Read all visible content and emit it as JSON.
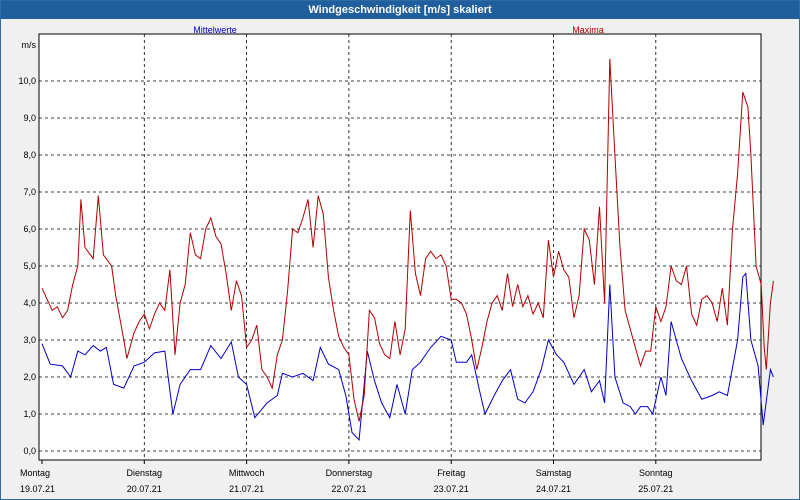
{
  "window": {
    "title": "Windgeschwindigkeit [m/s] skaliert"
  },
  "chart_data": {
    "type": "line",
    "ylabel": "m/s",
    "ylim": [
      0,
      11
    ],
    "yticks": [
      "0,0",
      "1,0",
      "2,0",
      "3,0",
      "4,0",
      "5,0",
      "6,0",
      "7,0",
      "8,0",
      "9,0",
      "10,0"
    ],
    "xlim": [
      0,
      7
    ],
    "xticks": [
      {
        "day": "Montag",
        "date": "19.07.21"
      },
      {
        "day": "Dienstag",
        "date": "20.07.21"
      },
      {
        "day": "Mittwoch",
        "date": "21.07.21"
      },
      {
        "day": "Donnerstag",
        "date": "22.07.21"
      },
      {
        "day": "Freitag",
        "date": "23.07.21"
      },
      {
        "day": "Samstag",
        "date": "24.07.21"
      },
      {
        "day": "Sonntag",
        "date": "25.07.21"
      }
    ],
    "grid": true,
    "series": [
      {
        "name": "Mittelwerte",
        "color": "#0000cc",
        "points": [
          [
            0.0,
            2.9
          ],
          [
            0.08,
            2.35
          ],
          [
            0.2,
            2.3
          ],
          [
            0.28,
            2.0
          ],
          [
            0.35,
            2.7
          ],
          [
            0.42,
            2.6
          ],
          [
            0.5,
            2.85
          ],
          [
            0.57,
            2.7
          ],
          [
            0.63,
            2.8
          ],
          [
            0.7,
            1.8
          ],
          [
            0.8,
            1.7
          ],
          [
            0.9,
            2.3
          ],
          [
            1.0,
            2.4
          ],
          [
            1.1,
            2.65
          ],
          [
            1.2,
            2.7
          ],
          [
            1.28,
            1.0
          ],
          [
            1.35,
            1.8
          ],
          [
            1.45,
            2.2
          ],
          [
            1.55,
            2.2
          ],
          [
            1.65,
            2.85
          ],
          [
            1.75,
            2.5
          ],
          [
            1.85,
            2.95
          ],
          [
            1.92,
            2.0
          ],
          [
            2.0,
            1.8
          ],
          [
            2.08,
            0.9
          ],
          [
            2.2,
            1.3
          ],
          [
            2.3,
            1.5
          ],
          [
            2.35,
            2.1
          ],
          [
            2.45,
            2.0
          ],
          [
            2.55,
            2.1
          ],
          [
            2.65,
            1.9
          ],
          [
            2.72,
            2.8
          ],
          [
            2.8,
            2.35
          ],
          [
            2.9,
            2.2
          ],
          [
            2.97,
            1.5
          ],
          [
            3.03,
            0.5
          ],
          [
            3.1,
            0.3
          ],
          [
            3.18,
            2.7
          ],
          [
            3.25,
            1.9
          ],
          [
            3.32,
            1.3
          ],
          [
            3.4,
            0.9
          ],
          [
            3.47,
            1.8
          ],
          [
            3.55,
            1.0
          ],
          [
            3.62,
            2.2
          ],
          [
            3.7,
            2.4
          ],
          [
            3.8,
            2.8
          ],
          [
            3.9,
            3.1
          ],
          [
            4.0,
            3.0
          ],
          [
            4.05,
            2.4
          ],
          [
            4.15,
            2.4
          ],
          [
            4.2,
            2.6
          ],
          [
            4.28,
            1.6
          ],
          [
            4.33,
            1.0
          ],
          [
            4.42,
            1.5
          ],
          [
            4.5,
            1.9
          ],
          [
            4.58,
            2.2
          ],
          [
            4.65,
            1.4
          ],
          [
            4.72,
            1.3
          ],
          [
            4.8,
            1.6
          ],
          [
            4.88,
            2.2
          ],
          [
            4.95,
            3.0
          ],
          [
            5.03,
            2.6
          ],
          [
            5.1,
            2.4
          ],
          [
            5.2,
            1.8
          ],
          [
            5.3,
            2.2
          ],
          [
            5.37,
            1.6
          ],
          [
            5.45,
            1.9
          ],
          [
            5.5,
            1.3
          ],
          [
            5.55,
            4.5
          ],
          [
            5.6,
            2.0
          ],
          [
            5.68,
            1.3
          ],
          [
            5.75,
            1.2
          ],
          [
            5.8,
            1.0
          ],
          [
            5.85,
            1.2
          ],
          [
            5.92,
            1.2
          ],
          [
            5.97,
            1.0
          ],
          [
            6.05,
            2.0
          ],
          [
            6.1,
            1.5
          ],
          [
            6.15,
            3.5
          ],
          [
            6.25,
            2.5
          ],
          [
            6.35,
            1.9
          ],
          [
            6.45,
            1.4
          ],
          [
            6.55,
            1.5
          ],
          [
            6.62,
            1.6
          ],
          [
            6.7,
            1.5
          ],
          [
            6.8,
            3.0
          ],
          [
            6.85,
            4.7
          ],
          [
            6.88,
            4.8
          ],
          [
            6.93,
            3.0
          ],
          [
            7.0,
            2.3
          ],
          [
            7.05,
            0.7
          ],
          [
            7.12,
            2.2
          ],
          [
            7.15,
            2.0
          ]
        ]
      },
      {
        "name": "Maxima",
        "color": "#b30000",
        "points": [
          [
            0.0,
            4.4
          ],
          [
            0.05,
            4.1
          ],
          [
            0.1,
            3.8
          ],
          [
            0.15,
            3.9
          ],
          [
            0.2,
            3.6
          ],
          [
            0.25,
            3.8
          ],
          [
            0.3,
            4.5
          ],
          [
            0.35,
            5.0
          ],
          [
            0.38,
            6.8
          ],
          [
            0.42,
            5.5
          ],
          [
            0.5,
            5.2
          ],
          [
            0.55,
            6.9
          ],
          [
            0.6,
            5.3
          ],
          [
            0.68,
            5.0
          ],
          [
            0.72,
            4.2
          ],
          [
            0.8,
            3.0
          ],
          [
            0.83,
            2.5
          ],
          [
            0.9,
            3.2
          ],
          [
            0.95,
            3.5
          ],
          [
            1.0,
            3.7
          ],
          [
            1.05,
            3.3
          ],
          [
            1.1,
            3.7
          ],
          [
            1.15,
            4.0
          ],
          [
            1.2,
            3.8
          ],
          [
            1.25,
            4.9
          ],
          [
            1.3,
            2.6
          ],
          [
            1.35,
            4.0
          ],
          [
            1.4,
            4.5
          ],
          [
            1.45,
            5.9
          ],
          [
            1.5,
            5.3
          ],
          [
            1.55,
            5.2
          ],
          [
            1.6,
            6.0
          ],
          [
            1.65,
            6.3
          ],
          [
            1.7,
            5.8
          ],
          [
            1.75,
            5.6
          ],
          [
            1.8,
            4.8
          ],
          [
            1.85,
            3.8
          ],
          [
            1.9,
            4.6
          ],
          [
            1.95,
            4.2
          ],
          [
            2.0,
            2.8
          ],
          [
            2.05,
            3.0
          ],
          [
            2.1,
            3.4
          ],
          [
            2.15,
            2.2
          ],
          [
            2.2,
            2.0
          ],
          [
            2.25,
            1.7
          ],
          [
            2.3,
            2.6
          ],
          [
            2.35,
            3.0
          ],
          [
            2.4,
            4.3
          ],
          [
            2.45,
            6.0
          ],
          [
            2.5,
            5.9
          ],
          [
            2.55,
            6.3
          ],
          [
            2.6,
            6.8
          ],
          [
            2.65,
            5.5
          ],
          [
            2.7,
            6.9
          ],
          [
            2.75,
            6.4
          ],
          [
            2.8,
            4.7
          ],
          [
            2.85,
            3.8
          ],
          [
            2.9,
            3.1
          ],
          [
            2.95,
            2.8
          ],
          [
            3.0,
            2.6
          ],
          [
            3.05,
            1.4
          ],
          [
            3.1,
            0.8
          ],
          [
            3.15,
            1.5
          ],
          [
            3.2,
            3.8
          ],
          [
            3.25,
            3.6
          ],
          [
            3.3,
            2.9
          ],
          [
            3.35,
            2.6
          ],
          [
            3.4,
            2.5
          ],
          [
            3.45,
            3.5
          ],
          [
            3.5,
            2.6
          ],
          [
            3.55,
            3.3
          ],
          [
            3.6,
            6.5
          ],
          [
            3.65,
            4.8
          ],
          [
            3.7,
            4.2
          ],
          [
            3.75,
            5.2
          ],
          [
            3.8,
            5.4
          ],
          [
            3.85,
            5.2
          ],
          [
            3.9,
            5.3
          ],
          [
            3.95,
            5.0
          ],
          [
            4.0,
            4.1
          ],
          [
            4.05,
            4.1
          ],
          [
            4.1,
            4.0
          ],
          [
            4.15,
            3.7
          ],
          [
            4.2,
            3.0
          ],
          [
            4.25,
            2.2
          ],
          [
            4.3,
            2.8
          ],
          [
            4.35,
            3.5
          ],
          [
            4.4,
            4.0
          ],
          [
            4.45,
            4.2
          ],
          [
            4.5,
            3.8
          ],
          [
            4.55,
            4.8
          ],
          [
            4.6,
            3.9
          ],
          [
            4.65,
            4.5
          ],
          [
            4.7,
            3.9
          ],
          [
            4.75,
            4.2
          ],
          [
            4.8,
            3.7
          ],
          [
            4.85,
            4.0
          ],
          [
            4.9,
            3.6
          ],
          [
            4.95,
            5.7
          ],
          [
            5.0,
            4.7
          ],
          [
            5.05,
            5.4
          ],
          [
            5.1,
            4.9
          ],
          [
            5.15,
            4.7
          ],
          [
            5.2,
            3.6
          ],
          [
            5.25,
            4.2
          ],
          [
            5.3,
            6.0
          ],
          [
            5.35,
            5.7
          ],
          [
            5.4,
            4.5
          ],
          [
            5.45,
            6.6
          ],
          [
            5.5,
            4.0
          ],
          [
            5.55,
            10.6
          ],
          [
            5.6,
            8.0
          ],
          [
            5.65,
            5.5
          ],
          [
            5.7,
            3.8
          ],
          [
            5.75,
            3.3
          ],
          [
            5.8,
            2.8
          ],
          [
            5.85,
            2.3
          ],
          [
            5.9,
            2.7
          ],
          [
            5.95,
            2.7
          ],
          [
            6.0,
            3.9
          ],
          [
            6.05,
            3.5
          ],
          [
            6.1,
            3.9
          ],
          [
            6.15,
            5.0
          ],
          [
            6.2,
            4.6
          ],
          [
            6.25,
            4.5
          ],
          [
            6.3,
            5.0
          ],
          [
            6.35,
            3.7
          ],
          [
            6.4,
            3.4
          ],
          [
            6.45,
            4.1
          ],
          [
            6.5,
            4.2
          ],
          [
            6.55,
            4.0
          ],
          [
            6.6,
            3.5
          ],
          [
            6.65,
            4.4
          ],
          [
            6.7,
            3.4
          ],
          [
            6.75,
            6.0
          ],
          [
            6.8,
            7.5
          ],
          [
            6.85,
            9.7
          ],
          [
            6.9,
            9.3
          ],
          [
            6.93,
            8.0
          ],
          [
            6.98,
            5.0
          ],
          [
            7.03,
            4.5
          ],
          [
            7.06,
            2.8
          ],
          [
            7.08,
            2.2
          ],
          [
            7.12,
            4.0
          ],
          [
            7.15,
            4.6
          ]
        ]
      }
    ]
  }
}
